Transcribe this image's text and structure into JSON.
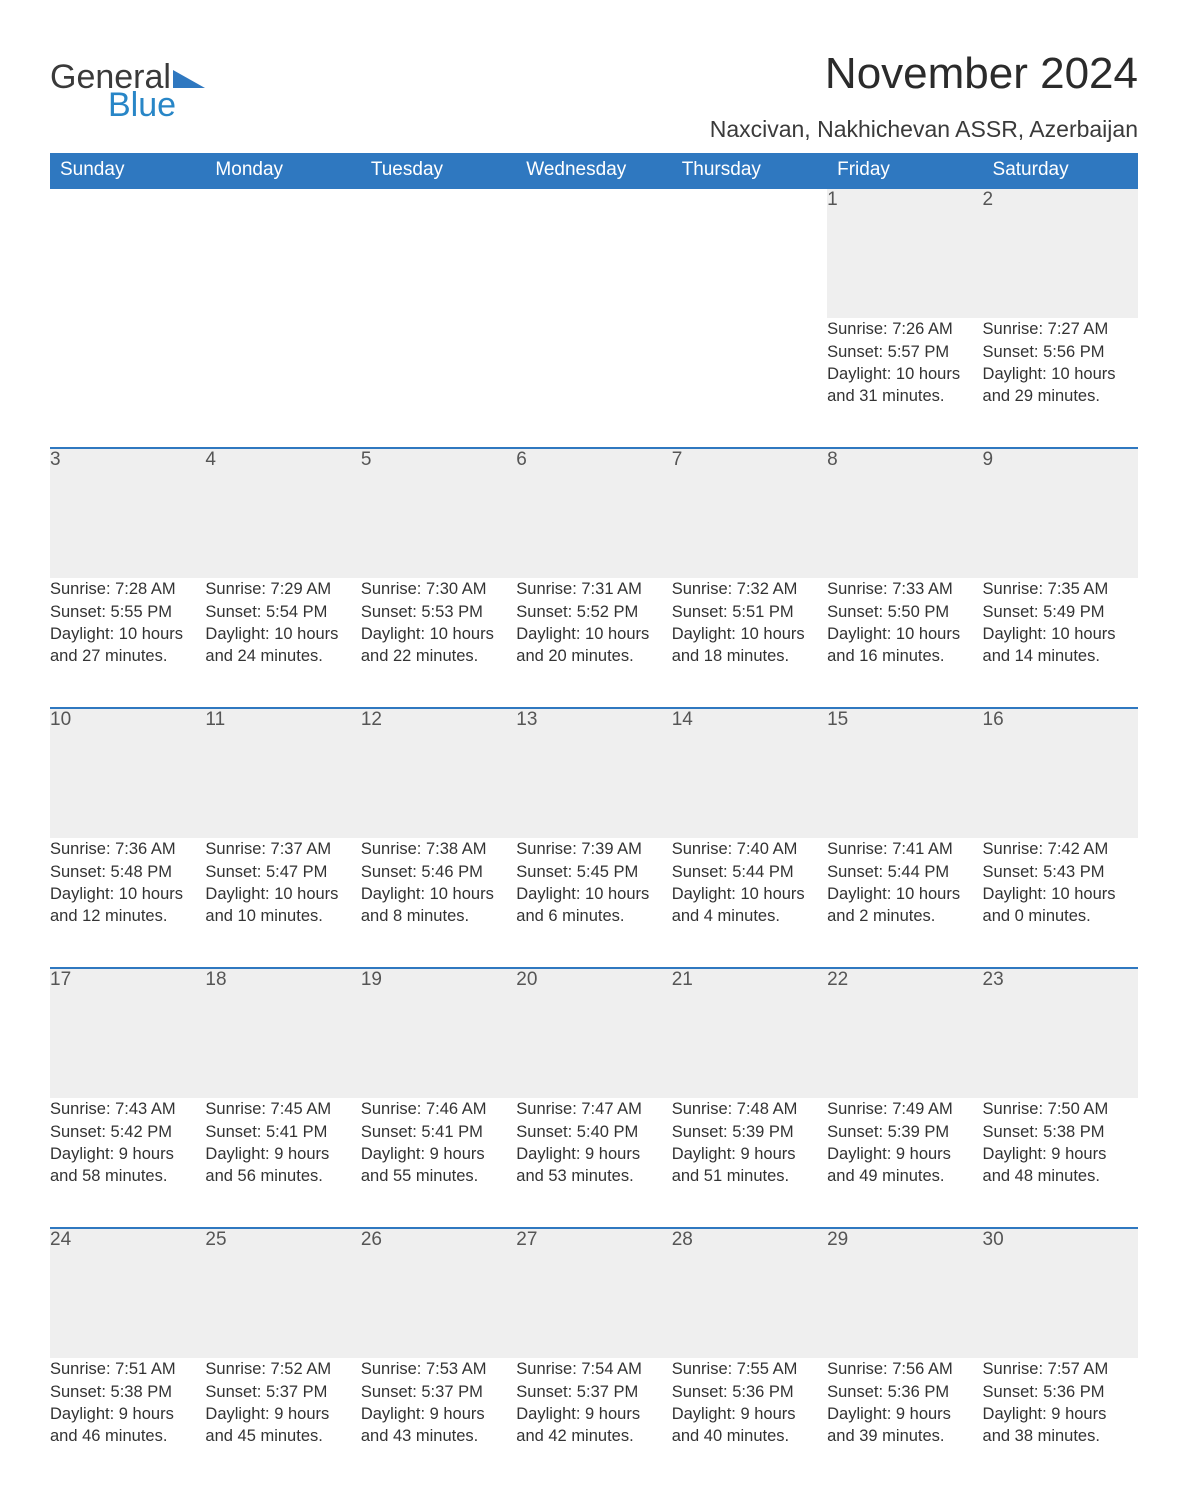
{
  "logo": {
    "part1": "General",
    "part2": "Blue"
  },
  "title": "November 2024",
  "location": "Naxcivan, Nakhichevan ASSR, Azerbaijan",
  "colors": {
    "header_bg": "#2f78c0",
    "header_text": "#ffffff",
    "daynum_bg": "#efefef",
    "border": "#2f78c0",
    "text": "#333333",
    "logo_blue": "#2886c7",
    "page_bg": "#ffffff"
  },
  "weekdays": [
    "Sunday",
    "Monday",
    "Tuesday",
    "Wednesday",
    "Thursday",
    "Friday",
    "Saturday"
  ],
  "weeks": [
    [
      null,
      null,
      null,
      null,
      null,
      {
        "n": "1",
        "sunrise": "Sunrise: 7:26 AM",
        "sunset": "Sunset: 5:57 PM",
        "daylight": "Daylight: 10 hours and 31 minutes."
      },
      {
        "n": "2",
        "sunrise": "Sunrise: 7:27 AM",
        "sunset": "Sunset: 5:56 PM",
        "daylight": "Daylight: 10 hours and 29 minutes."
      }
    ],
    [
      {
        "n": "3",
        "sunrise": "Sunrise: 7:28 AM",
        "sunset": "Sunset: 5:55 PM",
        "daylight": "Daylight: 10 hours and 27 minutes."
      },
      {
        "n": "4",
        "sunrise": "Sunrise: 7:29 AM",
        "sunset": "Sunset: 5:54 PM",
        "daylight": "Daylight: 10 hours and 24 minutes."
      },
      {
        "n": "5",
        "sunrise": "Sunrise: 7:30 AM",
        "sunset": "Sunset: 5:53 PM",
        "daylight": "Daylight: 10 hours and 22 minutes."
      },
      {
        "n": "6",
        "sunrise": "Sunrise: 7:31 AM",
        "sunset": "Sunset: 5:52 PM",
        "daylight": "Daylight: 10 hours and 20 minutes."
      },
      {
        "n": "7",
        "sunrise": "Sunrise: 7:32 AM",
        "sunset": "Sunset: 5:51 PM",
        "daylight": "Daylight: 10 hours and 18 minutes."
      },
      {
        "n": "8",
        "sunrise": "Sunrise: 7:33 AM",
        "sunset": "Sunset: 5:50 PM",
        "daylight": "Daylight: 10 hours and 16 minutes."
      },
      {
        "n": "9",
        "sunrise": "Sunrise: 7:35 AM",
        "sunset": "Sunset: 5:49 PM",
        "daylight": "Daylight: 10 hours and 14 minutes."
      }
    ],
    [
      {
        "n": "10",
        "sunrise": "Sunrise: 7:36 AM",
        "sunset": "Sunset: 5:48 PM",
        "daylight": "Daylight: 10 hours and 12 minutes."
      },
      {
        "n": "11",
        "sunrise": "Sunrise: 7:37 AM",
        "sunset": "Sunset: 5:47 PM",
        "daylight": "Daylight: 10 hours and 10 minutes."
      },
      {
        "n": "12",
        "sunrise": "Sunrise: 7:38 AM",
        "sunset": "Sunset: 5:46 PM",
        "daylight": "Daylight: 10 hours and 8 minutes."
      },
      {
        "n": "13",
        "sunrise": "Sunrise: 7:39 AM",
        "sunset": "Sunset: 5:45 PM",
        "daylight": "Daylight: 10 hours and 6 minutes."
      },
      {
        "n": "14",
        "sunrise": "Sunrise: 7:40 AM",
        "sunset": "Sunset: 5:44 PM",
        "daylight": "Daylight: 10 hours and 4 minutes."
      },
      {
        "n": "15",
        "sunrise": "Sunrise: 7:41 AM",
        "sunset": "Sunset: 5:44 PM",
        "daylight": "Daylight: 10 hours and 2 minutes."
      },
      {
        "n": "16",
        "sunrise": "Sunrise: 7:42 AM",
        "sunset": "Sunset: 5:43 PM",
        "daylight": "Daylight: 10 hours and 0 minutes."
      }
    ],
    [
      {
        "n": "17",
        "sunrise": "Sunrise: 7:43 AM",
        "sunset": "Sunset: 5:42 PM",
        "daylight": "Daylight: 9 hours and 58 minutes."
      },
      {
        "n": "18",
        "sunrise": "Sunrise: 7:45 AM",
        "sunset": "Sunset: 5:41 PM",
        "daylight": "Daylight: 9 hours and 56 minutes."
      },
      {
        "n": "19",
        "sunrise": "Sunrise: 7:46 AM",
        "sunset": "Sunset: 5:41 PM",
        "daylight": "Daylight: 9 hours and 55 minutes."
      },
      {
        "n": "20",
        "sunrise": "Sunrise: 7:47 AM",
        "sunset": "Sunset: 5:40 PM",
        "daylight": "Daylight: 9 hours and 53 minutes."
      },
      {
        "n": "21",
        "sunrise": "Sunrise: 7:48 AM",
        "sunset": "Sunset: 5:39 PM",
        "daylight": "Daylight: 9 hours and 51 minutes."
      },
      {
        "n": "22",
        "sunrise": "Sunrise: 7:49 AM",
        "sunset": "Sunset: 5:39 PM",
        "daylight": "Daylight: 9 hours and 49 minutes."
      },
      {
        "n": "23",
        "sunrise": "Sunrise: 7:50 AM",
        "sunset": "Sunset: 5:38 PM",
        "daylight": "Daylight: 9 hours and 48 minutes."
      }
    ],
    [
      {
        "n": "24",
        "sunrise": "Sunrise: 7:51 AM",
        "sunset": "Sunset: 5:38 PM",
        "daylight": "Daylight: 9 hours and 46 minutes."
      },
      {
        "n": "25",
        "sunrise": "Sunrise: 7:52 AM",
        "sunset": "Sunset: 5:37 PM",
        "daylight": "Daylight: 9 hours and 45 minutes."
      },
      {
        "n": "26",
        "sunrise": "Sunrise: 7:53 AM",
        "sunset": "Sunset: 5:37 PM",
        "daylight": "Daylight: 9 hours and 43 minutes."
      },
      {
        "n": "27",
        "sunrise": "Sunrise: 7:54 AM",
        "sunset": "Sunset: 5:37 PM",
        "daylight": "Daylight: 9 hours and 42 minutes."
      },
      {
        "n": "28",
        "sunrise": "Sunrise: 7:55 AM",
        "sunset": "Sunset: 5:36 PM",
        "daylight": "Daylight: 9 hours and 40 minutes."
      },
      {
        "n": "29",
        "sunrise": "Sunrise: 7:56 AM",
        "sunset": "Sunset: 5:36 PM",
        "daylight": "Daylight: 9 hours and 39 minutes."
      },
      {
        "n": "30",
        "sunrise": "Sunrise: 7:57 AM",
        "sunset": "Sunset: 5:36 PM",
        "daylight": "Daylight: 9 hours and 38 minutes."
      }
    ]
  ]
}
